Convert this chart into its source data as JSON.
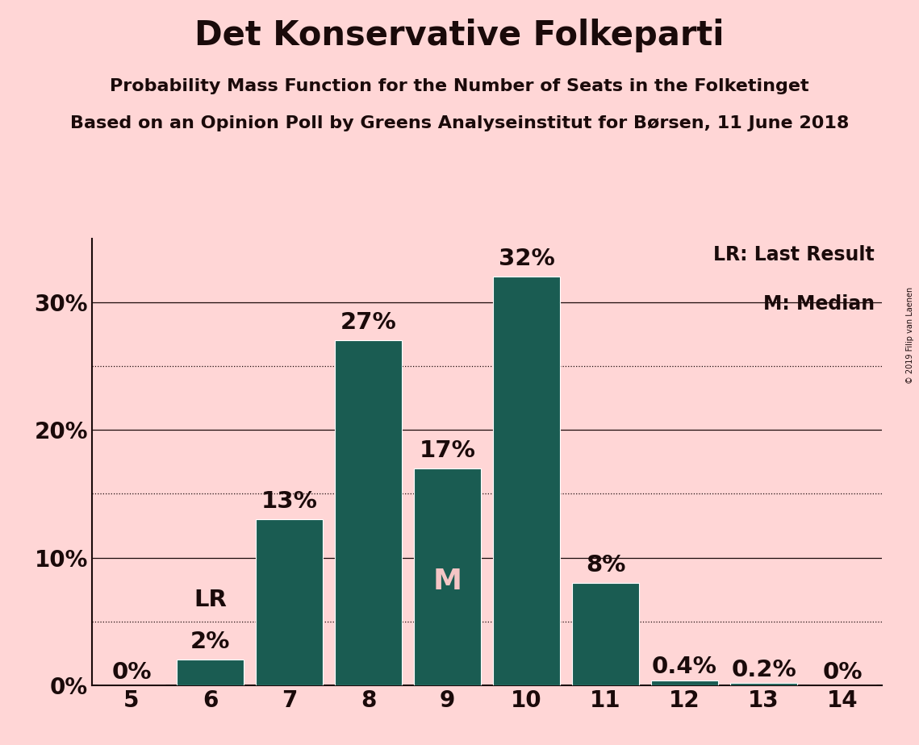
{
  "title": "Det Konservative Folkeparti",
  "subtitle1": "Probability Mass Function for the Number of Seats in the Folketinget",
  "subtitle2": "Based on an Opinion Poll by Greens Analyseinstitut for Børsen, 11 June 2018",
  "copyright": "© 2019 Filip van Laenen",
  "seats": [
    5,
    6,
    7,
    8,
    9,
    10,
    11,
    12,
    13,
    14
  ],
  "probabilities": [
    0.0,
    2.0,
    13.0,
    27.0,
    17.0,
    32.0,
    8.0,
    0.4,
    0.2,
    0.0
  ],
  "labels": [
    "0%",
    "2%",
    "13%",
    "27%",
    "17%",
    "32%",
    "8%",
    "0.4%",
    "0.2%",
    "0%"
  ],
  "bar_color": "#1a5c52",
  "background_color": "#ffd6d6",
  "text_color": "#1a0a0a",
  "label_color_dark": "#1a0a0a",
  "label_color_light": "#f5c5c5",
  "last_result_seat": 6,
  "median_seat": 9,
  "lr_label": "LR",
  "median_label": "M",
  "legend_lr": "LR: Last Result",
  "legend_m": "M: Median",
  "yticks": [
    0,
    10,
    20,
    30
  ],
  "ytick_labels": [
    "0%",
    "10%",
    "20%",
    "30%"
  ],
  "dotted_gridlines": [
    5,
    15,
    25
  ],
  "ylim": [
    0,
    35
  ],
  "title_fontsize": 30,
  "subtitle_fontsize": 16,
  "label_fontsize": 17,
  "axis_fontsize": 20,
  "annotation_fontsize": 21,
  "lr_fontsize": 21,
  "median_fontsize": 26
}
